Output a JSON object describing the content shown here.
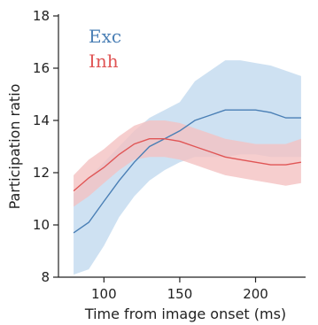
{
  "chart_data": {
    "type": "line",
    "title": "",
    "xlabel": "Time from image onset (ms)",
    "ylabel": "Participation ratio",
    "xlim": [
      70,
      233
    ],
    "ylim": [
      8,
      18
    ],
    "xticks": [
      100,
      150,
      200
    ],
    "yticks": [
      8,
      10,
      12,
      14,
      16,
      18
    ],
    "grid": false,
    "legend_position": "top-left",
    "series": [
      {
        "name": "Exc",
        "color": "#4a7fb5",
        "band_color": "#c5dcf0",
        "x": [
          80,
          90,
          100,
          110,
          120,
          130,
          140,
          150,
          160,
          170,
          180,
          190,
          200,
          210,
          220,
          230
        ],
        "y": [
          9.7,
          10.1,
          10.9,
          11.7,
          12.4,
          13.0,
          13.3,
          13.6,
          14.0,
          14.2,
          14.4,
          14.4,
          14.4,
          14.3,
          14.1,
          14.1
        ],
        "lower": [
          8.1,
          8.3,
          9.2,
          10.3,
          11.1,
          11.7,
          12.1,
          12.4,
          12.6,
          12.6,
          12.6,
          12.7,
          12.7,
          12.6,
          12.6,
          12.6
        ],
        "upper": [
          11.2,
          11.8,
          12.4,
          13.0,
          13.6,
          14.1,
          14.4,
          14.7,
          15.5,
          15.9,
          16.3,
          16.3,
          16.2,
          16.1,
          15.9,
          15.7
        ]
      },
      {
        "name": "Inh",
        "color": "#e05555",
        "band_color": "#f4c2c2",
        "x": [
          80,
          90,
          100,
          110,
          120,
          130,
          140,
          150,
          160,
          170,
          180,
          190,
          200,
          210,
          220,
          230
        ],
        "y": [
          11.3,
          11.8,
          12.2,
          12.7,
          13.1,
          13.3,
          13.3,
          13.2,
          13.0,
          12.8,
          12.6,
          12.5,
          12.4,
          12.3,
          12.3,
          12.4
        ],
        "lower": [
          10.7,
          11.1,
          11.6,
          12.1,
          12.5,
          12.6,
          12.6,
          12.5,
          12.3,
          12.1,
          11.9,
          11.8,
          11.7,
          11.6,
          11.5,
          11.6
        ],
        "upper": [
          11.9,
          12.5,
          12.9,
          13.4,
          13.8,
          14.0,
          14.0,
          13.9,
          13.7,
          13.5,
          13.3,
          13.2,
          13.1,
          13.1,
          13.1,
          13.3
        ]
      }
    ]
  }
}
